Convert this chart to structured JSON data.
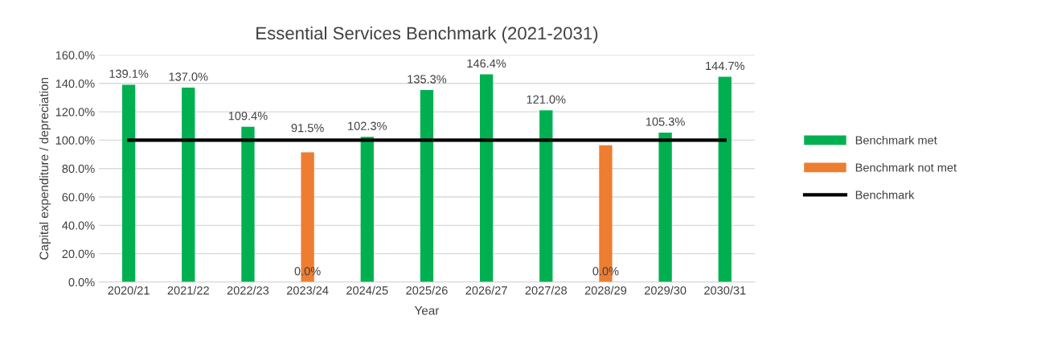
{
  "chart_data": {
    "type": "bar",
    "title": "Essential Services Benchmark (2021-2031)",
    "xlabel": "Year",
    "ylabel": "Capital expenditure / depreciation",
    "categories": [
      "2020/21",
      "2021/22",
      "2022/23",
      "2023/24",
      "2024/25",
      "2025/26",
      "2026/27",
      "2027/28",
      "2028/29",
      "2029/30",
      "2030/31"
    ],
    "series": [
      {
        "name": "Benchmark met",
        "color": "#00b050",
        "values": [
          139.1,
          137.0,
          109.4,
          0.0,
          102.3,
          135.3,
          146.4,
          121.0,
          0.0,
          105.3,
          144.7
        ],
        "value_labels": [
          "139.1%",
          "137.0%",
          "109.4%",
          "0.0%",
          "102.3%",
          "135.3%",
          "146.4%",
          "121.0%",
          "0.0%",
          "105.3%",
          "144.7%"
        ]
      },
      {
        "name": "Benchmark not met",
        "color": "#ed7d31",
        "values": [
          null,
          null,
          null,
          91.5,
          null,
          null,
          null,
          null,
          96.4,
          null,
          null
        ],
        "value_labels": [
          null,
          null,
          null,
          "91.5%",
          null,
          null,
          null,
          null,
          null,
          null,
          null
        ]
      },
      {
        "name": "Benchmark",
        "type": "line",
        "color": "#000000",
        "values": [
          100,
          100,
          100,
          100,
          100,
          100,
          100,
          100,
          100,
          100,
          100
        ]
      }
    ],
    "ylim": [
      0,
      160
    ],
    "yticks": [
      {
        "value": 0,
        "label": "0.0%"
      },
      {
        "value": 20,
        "label": "20.0%"
      },
      {
        "value": 40,
        "label": "40.0%"
      },
      {
        "value": 60,
        "label": "60.0%"
      },
      {
        "value": 80,
        "label": "80.0%"
      },
      {
        "value": 100,
        "label": "100.0%"
      },
      {
        "value": 120,
        "label": "120.0%"
      },
      {
        "value": 140,
        "label": "140.0%"
      },
      {
        "value": 160,
        "label": "160.0%"
      }
    ],
    "grid": "y",
    "legend": "right"
  }
}
